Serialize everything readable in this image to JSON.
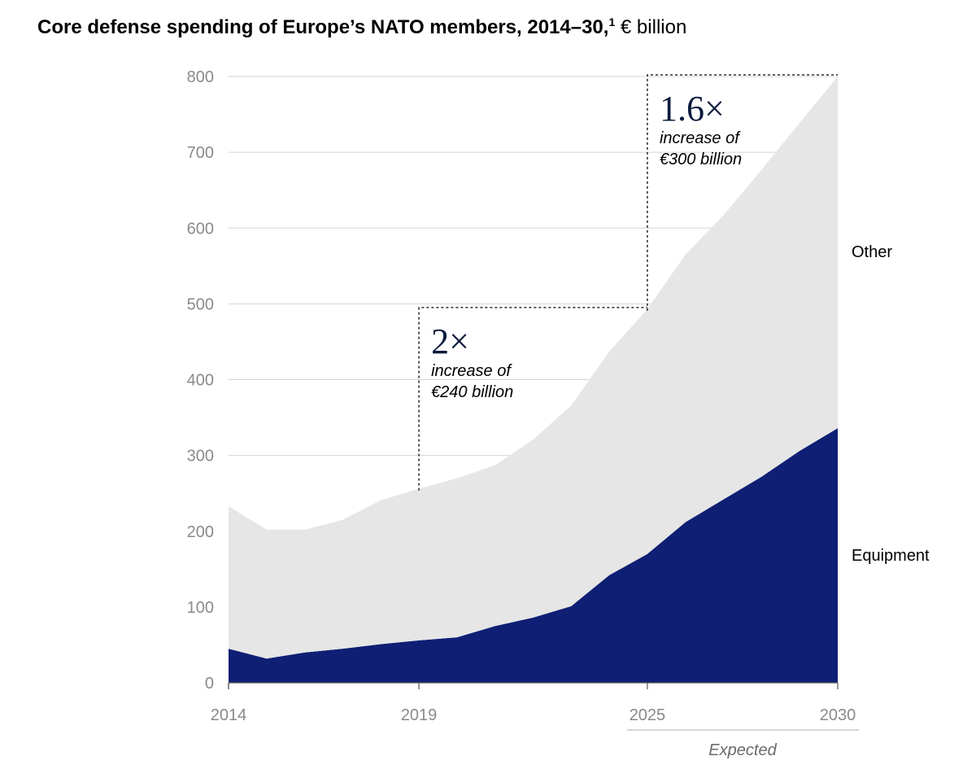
{
  "title": {
    "main": "Core defense spending of Europe’s NATO members, 2014–30,",
    "footnote": "1",
    "unit": " € billion"
  },
  "colors": {
    "equipment": "#0e1f74",
    "other": "#e6e6e6",
    "grid": "#d4d4d4",
    "axis": "#555555"
  },
  "chart_data": {
    "type": "area",
    "stacked": true,
    "x": [
      2014,
      2015,
      2016,
      2017,
      2018,
      2019,
      2020,
      2021,
      2022,
      2023,
      2024,
      2025,
      2026,
      2027,
      2028,
      2029,
      2030
    ],
    "series": [
      {
        "name": "Equipment",
        "values": [
          45,
          32,
          40,
          45,
          51,
          56,
          60,
          75,
          86,
          101,
          142,
          170,
          212,
          242,
          272,
          306,
          336
        ]
      },
      {
        "name": "Other",
        "values": [
          188,
          170,
          162,
          170,
          190,
          200,
          210,
          212,
          235,
          265,
          295,
          323,
          353,
          375,
          405,
          433,
          464
        ]
      }
    ],
    "total_values": [
      233,
      202,
      202,
      215,
      241,
      256,
      270,
      287,
      321,
      366,
      437,
      493,
      565,
      617,
      677,
      739,
      800
    ],
    "ylim": [
      0,
      800
    ],
    "yticks": [
      0,
      100,
      200,
      300,
      400,
      500,
      600,
      700,
      800
    ],
    "xticks": [
      2014,
      2019,
      2025,
      2030
    ],
    "xtick_labels": [
      "2014",
      "2019",
      "2025",
      "2030"
    ],
    "legend_position": "right",
    "expected_label": "Expected",
    "expected_from": 2025,
    "annotations": [
      {
        "from": 2019,
        "to": 2025,
        "multiplier": "2×",
        "line1": "increase of",
        "line2": "€240 billion"
      },
      {
        "from": 2025,
        "to": 2030,
        "multiplier": "1.6×",
        "line1": "increase of",
        "line2": "€300 billion"
      }
    ]
  }
}
